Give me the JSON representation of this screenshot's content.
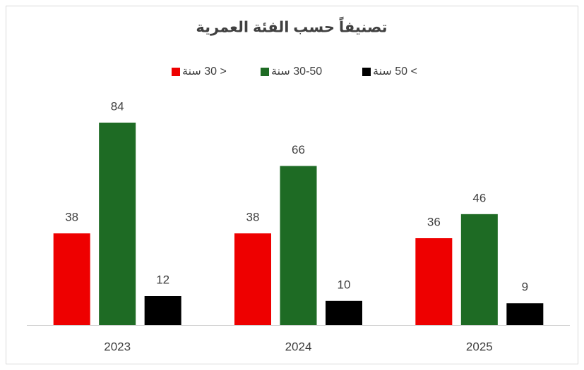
{
  "chart_data": {
    "type": "bar",
    "title": "تصنيفاً حسب الفئة العمرية",
    "categories": [
      "2023",
      "2024",
      "2025"
    ],
    "series": [
      {
        "name": "< 30 سنة",
        "color": "#ee0000",
        "values": [
          38,
          38,
          36
        ]
      },
      {
        "name": "30-50 سنة",
        "color": "#1e6b24",
        "values": [
          84,
          66,
          46
        ]
      },
      {
        "name": "> 50 سنة",
        "color": "#000000",
        "values": [
          12,
          10,
          9
        ]
      }
    ]
  }
}
